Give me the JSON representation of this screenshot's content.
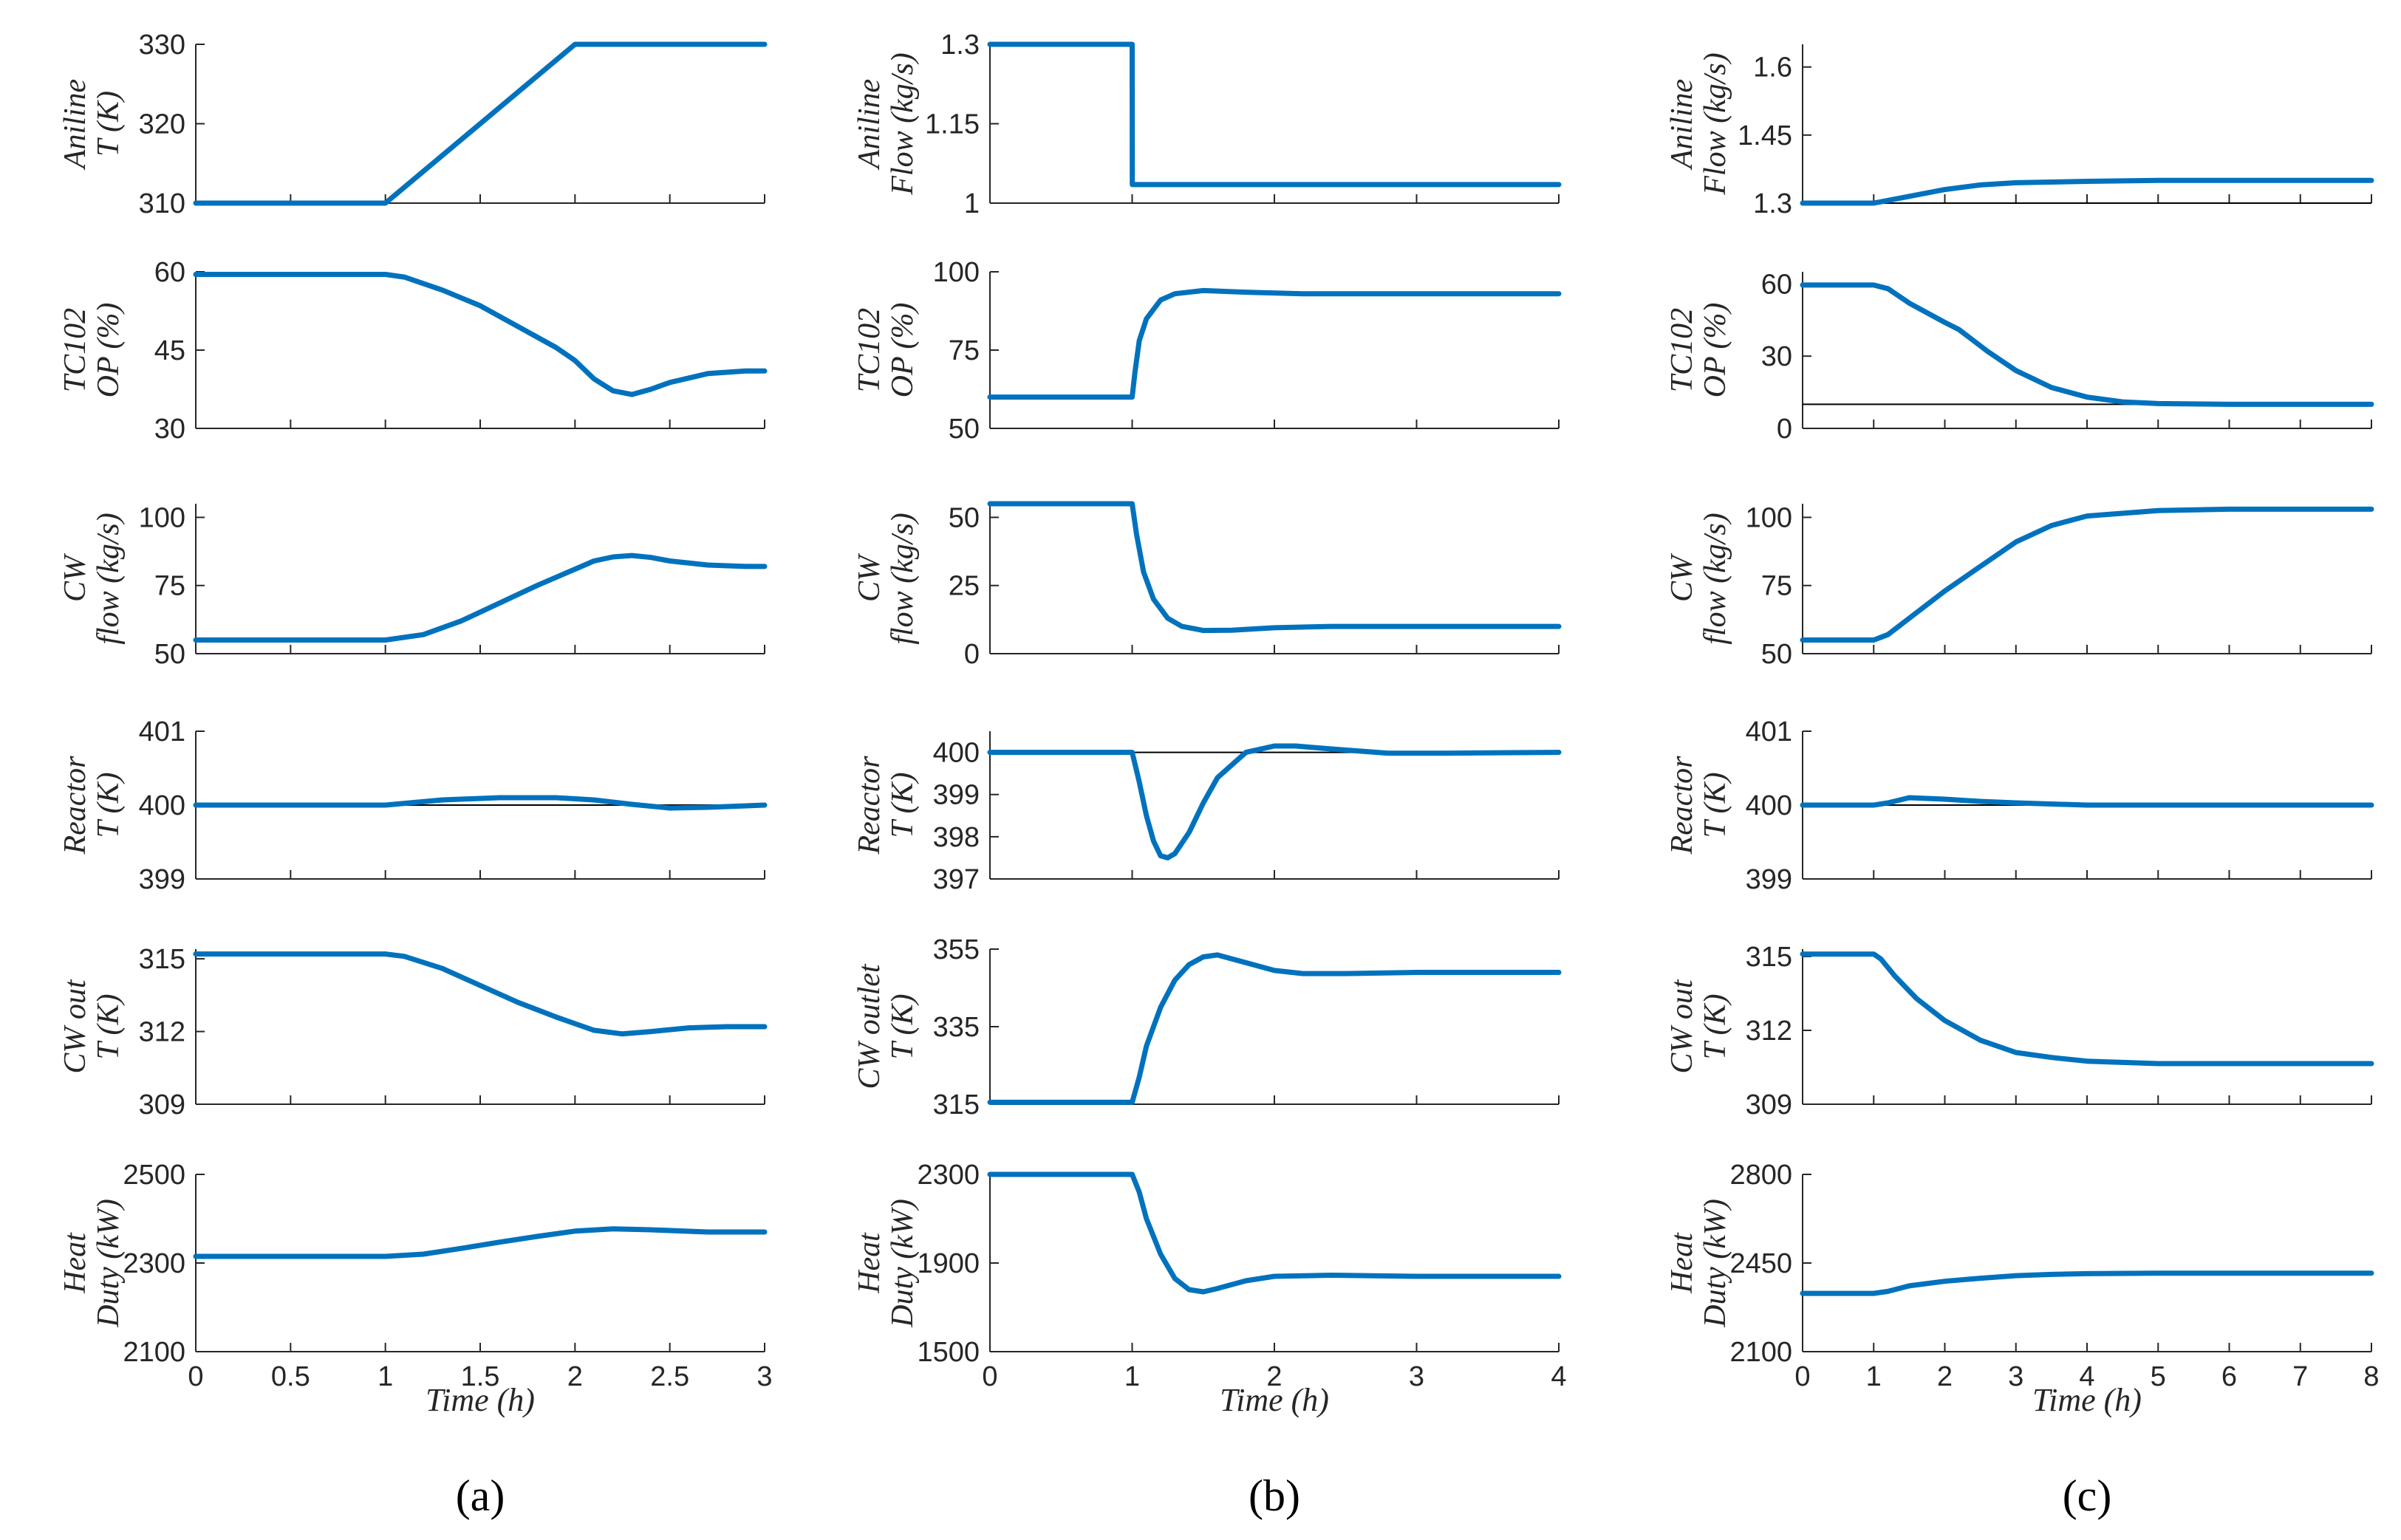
{
  "colors": {
    "line": "#0072BD",
    "axis": "#262626",
    "ref": "#000000"
  },
  "chart_data": [
    {
      "type": "line",
      "panel_label": "(a)",
      "xlabel": "Time (h)",
      "xlim": [
        0,
        3
      ],
      "xticks": [
        0,
        0.5,
        1,
        1.5,
        2,
        2.5,
        3
      ],
      "xtick_labels": [
        "0",
        "0.5",
        "1",
        "1.5",
        "2",
        "2.5",
        "3"
      ],
      "subplots": [
        {
          "ylabel1": "Aniline",
          "ylabel2": "T (K)",
          "ylim": [
            310,
            330
          ],
          "yticks": [
            310,
            320,
            330
          ],
          "ytick_labels": [
            "310",
            "320",
            "330"
          ],
          "ref": null,
          "series": {
            "name": "Aniline T",
            "x": [
              0,
              1,
              2,
              3
            ],
            "y": [
              310,
              310,
              330,
              330
            ]
          }
        },
        {
          "ylabel1": "TC102",
          "ylabel2": "OP (%)",
          "ylim": [
            30,
            60
          ],
          "yticks": [
            30,
            45,
            60
          ],
          "ytick_labels": [
            "30",
            "45",
            "60"
          ],
          "ref": null,
          "series": {
            "name": "TC102 OP",
            "x": [
              0,
              1,
              1.1,
              1.3,
              1.5,
              1.7,
              1.9,
              2.0,
              2.1,
              2.2,
              2.3,
              2.4,
              2.5,
              2.7,
              2.9,
              3
            ],
            "y": [
              59.5,
              59.5,
              59,
              56.5,
              53.5,
              49.5,
              45.5,
              43,
              39.5,
              37.2,
              36.5,
              37.5,
              38.8,
              40.5,
              41,
              41
            ]
          }
        },
        {
          "ylabel1": "CW",
          "ylabel2": "flow (kg/s)",
          "ylim": [
            50,
            105
          ],
          "yticks": [
            50,
            75,
            100
          ],
          "ytick_labels": [
            "50",
            "75",
            "100"
          ],
          "ref": null,
          "series": {
            "name": "CW flow",
            "x": [
              0,
              1,
              1.2,
              1.4,
              1.6,
              1.8,
              2.0,
              2.1,
              2.2,
              2.3,
              2.4,
              2.5,
              2.7,
              2.9,
              3
            ],
            "y": [
              55,
              55,
              57,
              62,
              68.5,
              75,
              81,
              84,
              85.5,
              86,
              85.3,
              84,
              82.5,
              82,
              82
            ]
          }
        },
        {
          "ylabel1": "Reactor",
          "ylabel2": "T (K)",
          "ylim": [
            399,
            401
          ],
          "yticks": [
            399,
            400,
            401
          ],
          "ytick_labels": [
            "399",
            "400",
            "401"
          ],
          "ref": 400,
          "series": {
            "name": "Reactor T",
            "x": [
              0,
              1,
              1.3,
              1.6,
              1.9,
              2.1,
              2.3,
              2.5,
              2.7,
              3
            ],
            "y": [
              400,
              400,
              400.07,
              400.1,
              400.1,
              400.07,
              400.01,
              399.96,
              399.97,
              400
            ]
          }
        },
        {
          "ylabel1": "CW out",
          "ylabel2": "T (K)",
          "ylim": [
            309,
            315.4
          ],
          "yticks": [
            309,
            312,
            315
          ],
          "ytick_labels": [
            "309",
            "312",
            "315"
          ],
          "ref": null,
          "series": {
            "name": "CW out T",
            "x": [
              0,
              1,
              1.1,
              1.3,
              1.5,
              1.7,
              1.9,
              2.1,
              2.25,
              2.4,
              2.6,
              2.8,
              3
            ],
            "y": [
              315.2,
              315.2,
              315.1,
              314.6,
              313.9,
              313.2,
              312.6,
              312.05,
              311.9,
              312,
              312.15,
              312.2,
              312.2
            ]
          }
        },
        {
          "ylabel1": "Heat",
          "ylabel2": "Duty (kW)",
          "ylim": [
            2100,
            2500
          ],
          "yticks": [
            2100,
            2300,
            2500
          ],
          "ytick_labels": [
            "2100",
            "2300",
            "2500"
          ],
          "ref": null,
          "series": {
            "name": "Heat Duty",
            "x": [
              0,
              1,
              1.2,
              1.4,
              1.6,
              1.8,
              2.0,
              2.2,
              2.4,
              2.7,
              3
            ],
            "y": [
              2315,
              2315,
              2320,
              2333,
              2347,
              2360,
              2372,
              2377,
              2375,
              2370,
              2370
            ]
          }
        }
      ]
    },
    {
      "type": "line",
      "panel_label": "(b)",
      "xlabel": "Time (h)",
      "xlim": [
        0,
        4
      ],
      "xticks": [
        0,
        1,
        2,
        3,
        4
      ],
      "xtick_labels": [
        "0",
        "1",
        "2",
        "3",
        "4"
      ],
      "subplots": [
        {
          "ylabel1": "Aniline",
          "ylabel2": "Flow (kg/s)",
          "ylim": [
            1,
            1.3
          ],
          "yticks": [
            1,
            1.15,
            1.3
          ],
          "ytick_labels": [
            "1",
            "1.15",
            "1.3"
          ],
          "ref": null,
          "series": {
            "name": "Aniline Flow",
            "x": [
              0,
              1,
              1.001,
              4
            ],
            "y": [
              1.3,
              1.3,
              1.035,
              1.035
            ]
          }
        },
        {
          "ylabel1": "TC102",
          "ylabel2": "OP (%)",
          "ylim": [
            50,
            100
          ],
          "yticks": [
            50,
            75,
            100
          ],
          "ytick_labels": [
            "50",
            "75",
            "100"
          ],
          "ref": null,
          "series": {
            "name": "TC102 OP",
            "x": [
              0,
              1,
              1.02,
              1.05,
              1.1,
              1.2,
              1.3,
              1.5,
              1.8,
              2.2,
              2.6,
              3,
              4
            ],
            "y": [
              60,
              60,
              68,
              78,
              85,
              91,
              93,
              94,
              93.5,
              93,
              93,
              93,
              93
            ]
          }
        },
        {
          "ylabel1": "CW",
          "ylabel2": "flow (kg/s)",
          "ylim": [
            0,
            55
          ],
          "yticks": [
            0,
            25,
            50
          ],
          "ytick_labels": [
            "0",
            "25",
            "50"
          ],
          "ref": null,
          "series": {
            "name": "CW flow",
            "x": [
              0,
              1,
              1.03,
              1.08,
              1.15,
              1.25,
              1.35,
              1.5,
              1.7,
              2.0,
              2.4,
              3,
              4
            ],
            "y": [
              55,
              55,
              44,
              30,
              20,
              13,
              10,
              8.5,
              8.6,
              9.5,
              10,
              10,
              10
            ]
          }
        },
        {
          "ylabel1": "Reactor",
          "ylabel2": "T (K)",
          "ylim": [
            397,
            400.5
          ],
          "yticks": [
            397,
            398,
            399,
            400
          ],
          "ytick_labels": [
            "397",
            "398",
            "399",
            "400"
          ],
          "ref": 400,
          "series": {
            "name": "Reactor T",
            "x": [
              0,
              1,
              1.05,
              1.1,
              1.15,
              1.2,
              1.25,
              1.3,
              1.4,
              1.5,
              1.6,
              1.8,
              2.0,
              2.15,
              2.4,
              2.8,
              3.2,
              4
            ],
            "y": [
              400,
              400,
              399.3,
              398.5,
              397.9,
              397.55,
              397.5,
              397.6,
              398.1,
              398.8,
              399.4,
              400.0,
              400.15,
              400.15,
              400.08,
              399.98,
              399.98,
              400
            ]
          }
        },
        {
          "ylabel1": "CW outlet",
          "ylabel2": "T (K)",
          "ylim": [
            315,
            355
          ],
          "yticks": [
            315,
            335,
            355
          ],
          "ytick_labels": [
            "315",
            "335",
            "355"
          ],
          "ref": null,
          "series": {
            "name": "CW outlet T",
            "x": [
              0,
              1,
              1.05,
              1.1,
              1.2,
              1.3,
              1.4,
              1.5,
              1.6,
              1.8,
              2.0,
              2.2,
              2.5,
              3,
              4
            ],
            "y": [
              315.5,
              315.5,
              322,
              330,
              340,
              347,
              351,
              353,
              353.5,
              351.5,
              349.5,
              348.7,
              348.7,
              349,
              349
            ]
          }
        },
        {
          "ylabel1": "Heat",
          "ylabel2": "Duty (kW)",
          "ylim": [
            1500,
            2300
          ],
          "yticks": [
            1500,
            1900,
            2300
          ],
          "ytick_labels": [
            "1500",
            "1900",
            "2300"
          ],
          "ref": null,
          "series": {
            "name": "Heat Duty",
            "x": [
              0,
              1,
              1.05,
              1.1,
              1.2,
              1.3,
              1.4,
              1.5,
              1.6,
              1.8,
              2.0,
              2.4,
              3,
              4
            ],
            "y": [
              2300,
              2300,
              2220,
              2100,
              1940,
              1830,
              1780,
              1770,
              1785,
              1820,
              1840,
              1845,
              1840,
              1840
            ]
          }
        }
      ]
    },
    {
      "type": "line",
      "panel_label": "(c)",
      "xlabel": "Time (h)",
      "xlim": [
        0,
        8
      ],
      "xticks": [
        0,
        1,
        2,
        3,
        4,
        5,
        6,
        7,
        8
      ],
      "xtick_labels": [
        "0",
        "1",
        "2",
        "3",
        "4",
        "5",
        "6",
        "7",
        "8"
      ],
      "subplots": [
        {
          "ylabel1": "Aniline",
          "ylabel2": "Flow (kg/s)",
          "ylim": [
            1.3,
            1.65
          ],
          "yticks": [
            1.3,
            1.45,
            1.6
          ],
          "ytick_labels": [
            "1.3",
            "1.45",
            "1.6"
          ],
          "ref": 1.3,
          "series": {
            "name": "Aniline Flow",
            "x": [
              0,
              1,
              1.5,
              2,
              2.5,
              3,
              4,
              5,
              6,
              7,
              8
            ],
            "y": [
              1.3,
              1.3,
              1.315,
              1.33,
              1.34,
              1.345,
              1.348,
              1.35,
              1.35,
              1.35,
              1.35
            ]
          }
        },
        {
          "ylabel1": "TC102",
          "ylabel2": "OP (%)",
          "ylim": [
            0,
            65
          ],
          "yticks": [
            0,
            30,
            60
          ],
          "ytick_labels": [
            "0",
            "30",
            "60"
          ],
          "ref": 10,
          "series": {
            "name": "TC102 OP",
            "x": [
              0,
              1,
              1.2,
              1.5,
              2.0,
              2.2,
              2.6,
              3.0,
              3.5,
              4,
              4.5,
              5,
              6,
              7,
              8
            ],
            "y": [
              59.5,
              59.5,
              58,
              52,
              44,
              41,
              32,
              24,
              17,
              13,
              11,
              10.3,
              10,
              10,
              10
            ]
          }
        },
        {
          "ylabel1": "CW",
          "ylabel2": "flow (kg/s)",
          "ylim": [
            50,
            105
          ],
          "yticks": [
            50,
            75,
            100
          ],
          "ytick_labels": [
            "50",
            "75",
            "100"
          ],
          "ref": null,
          "series": {
            "name": "CW flow",
            "x": [
              0,
              1,
              1.2,
              1.5,
              2.0,
              2.5,
              3.0,
              3.5,
              4,
              5,
              6,
              7,
              8
            ],
            "y": [
              55,
              55,
              57,
              63,
              73,
              82,
              91,
              97,
              100.5,
              102.5,
              103,
              103,
              103
            ]
          }
        },
        {
          "ylabel1": "Reactor",
          "ylabel2": "T (K)",
          "ylim": [
            399,
            401
          ],
          "yticks": [
            399,
            400,
            401
          ],
          "ytick_labels": [
            "399",
            "400",
            "401"
          ],
          "ref": 400,
          "series": {
            "name": "Reactor T",
            "x": [
              0,
              1,
              1.2,
              1.5,
              2.0,
              2.5,
              3.0,
              4,
              5,
              6,
              7,
              8
            ],
            "y": [
              400,
              400,
              400.03,
              400.1,
              400.08,
              400.05,
              400.03,
              400.0,
              400.0,
              400.0,
              400.0,
              400.0
            ]
          }
        },
        {
          "ylabel1": "CW out",
          "ylabel2": "T (K)",
          "ylim": [
            309,
            315.3
          ],
          "yticks": [
            309,
            312,
            315
          ],
          "ytick_labels": [
            "309",
            "312",
            "315"
          ],
          "ref": null,
          "series": {
            "name": "CW out T",
            "x": [
              0,
              1,
              1.1,
              1.3,
              1.6,
              2.0,
              2.5,
              3.0,
              3.5,
              4,
              5,
              6,
              7,
              8
            ],
            "y": [
              315.1,
              315.1,
              314.9,
              314.2,
              313.3,
              312.4,
              311.6,
              311.1,
              310.9,
              310.75,
              310.65,
              310.65,
              310.65,
              310.65
            ]
          }
        },
        {
          "ylabel1": "Heat",
          "ylabel2": "Duty (kW)",
          "ylim": [
            2100,
            2800
          ],
          "yticks": [
            2100,
            2450,
            2800
          ],
          "ytick_labels": [
            "2100",
            "2450",
            "2800"
          ],
          "ref": null,
          "series": {
            "name": "Heat Duty",
            "x": [
              0,
              1,
              1.2,
              1.5,
              2.0,
              2.5,
              3.0,
              3.5,
              4,
              5,
              6,
              7,
              8
            ],
            "y": [
              2330,
              2330,
              2338,
              2360,
              2378,
              2390,
              2400,
              2405,
              2408,
              2410,
              2410,
              2410,
              2410
            ]
          }
        }
      ]
    }
  ]
}
